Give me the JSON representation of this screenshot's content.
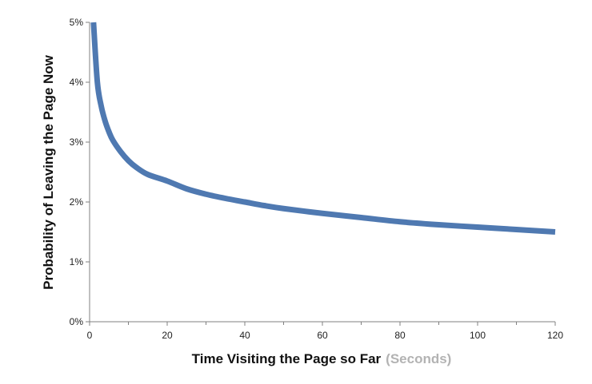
{
  "chart_data": {
    "type": "line",
    "title": "",
    "xlabel": "Time Visiting the Page so Far",
    "xlabel_unit": "(Seconds)",
    "ylabel": "Probability of Leaving  the Page Now",
    "xlim": [
      0,
      120
    ],
    "ylim": [
      0,
      5
    ],
    "x_ticks": [
      0,
      20,
      40,
      60,
      80,
      100,
      120
    ],
    "x_tick_labels": [
      "0",
      "20",
      "40",
      "60",
      "80",
      "100",
      "120"
    ],
    "y_ticks": [
      0,
      1,
      2,
      3,
      4,
      5
    ],
    "y_tick_labels": [
      "0%",
      "1%",
      "2%",
      "3%",
      "4%",
      "5%"
    ],
    "y_unit": "percent",
    "grid": false,
    "legend": "none",
    "series": [
      {
        "color": "#4f79b1",
        "x": [
          1,
          2,
          3,
          4,
          5,
          6,
          8,
          10,
          12,
          15,
          20,
          25,
          30,
          35,
          40,
          45,
          50,
          60,
          70,
          80,
          90,
          100,
          110,
          120
        ],
        "y": [
          5.0,
          4.0,
          3.6,
          3.35,
          3.17,
          3.03,
          2.84,
          2.69,
          2.58,
          2.46,
          2.35,
          2.22,
          2.13,
          2.06,
          2.0,
          1.94,
          1.89,
          1.81,
          1.74,
          1.67,
          1.62,
          1.58,
          1.54,
          1.5
        ]
      }
    ]
  }
}
